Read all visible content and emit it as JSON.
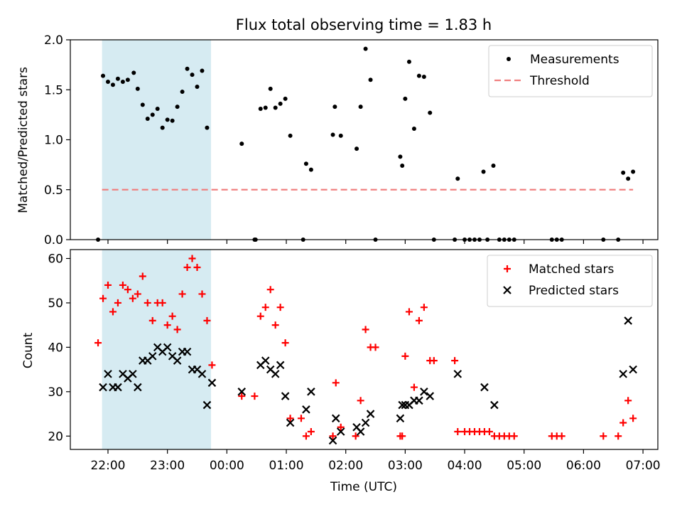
{
  "title": "Flux total observing time = 1.83 h",
  "chart_data": [
    {
      "type": "scatter",
      "ylabel": "Matched/Predicted stars",
      "ylim": [
        0,
        2.0
      ],
      "xlim": [
        "21:22",
        "07:15"
      ],
      "grid": false,
      "legend_placement": "top-right",
      "highlight_band": {
        "start": "21:54",
        "end": "23:44",
        "color": "#add8e6"
      },
      "yticks": [
        "0.0",
        "0.5",
        "1.0",
        "1.5",
        "2.0"
      ],
      "series": [
        {
          "name": "Measurements",
          "marker": "dot",
          "color": "#000000",
          "points": [
            [
              "21:50",
              0.0
            ],
            [
              "21:55",
              1.64
            ],
            [
              "22:00",
              1.58
            ],
            [
              "22:05",
              1.55
            ],
            [
              "22:10",
              1.61
            ],
            [
              "22:15",
              1.58
            ],
            [
              "22:20",
              1.6
            ],
            [
              "22:26",
              1.67
            ],
            [
              "22:30",
              1.51
            ],
            [
              "22:35",
              1.35
            ],
            [
              "22:40",
              1.21
            ],
            [
              "22:45",
              1.25
            ],
            [
              "22:50",
              1.31
            ],
            [
              "22:55",
              1.12
            ],
            [
              "23:00",
              1.2
            ],
            [
              "23:05",
              1.19
            ],
            [
              "23:10",
              1.33
            ],
            [
              "23:15",
              1.48
            ],
            [
              "23:20",
              1.71
            ],
            [
              "23:25",
              1.65
            ],
            [
              "23:30",
              1.53
            ],
            [
              "23:35",
              1.69
            ],
            [
              "23:40",
              1.12
            ],
            [
              "00:15",
              0.96
            ],
            [
              "00:28",
              0.0
            ],
            [
              "00:29",
              0.0
            ],
            [
              "00:34",
              1.31
            ],
            [
              "00:39",
              1.32
            ],
            [
              "00:44",
              1.51
            ],
            [
              "00:49",
              1.32
            ],
            [
              "00:54",
              1.36
            ],
            [
              "00:59",
              1.41
            ],
            [
              "01:04",
              1.04
            ],
            [
              "01:17",
              0.0
            ],
            [
              "01:20",
              0.76
            ],
            [
              "01:25",
              0.7
            ],
            [
              "01:47",
              1.05
            ],
            [
              "01:49",
              1.33
            ],
            [
              "01:55",
              1.04
            ],
            [
              "02:11",
              0.91
            ],
            [
              "02:15",
              1.33
            ],
            [
              "02:20",
              1.91
            ],
            [
              "02:25",
              1.6
            ],
            [
              "02:30",
              0.0
            ],
            [
              "02:55",
              0.83
            ],
            [
              "02:57",
              0.74
            ],
            [
              "03:00",
              1.41
            ],
            [
              "03:04",
              1.78
            ],
            [
              "03:09",
              1.11
            ],
            [
              "03:14",
              1.64
            ],
            [
              "03:19",
              1.63
            ],
            [
              "03:25",
              1.27
            ],
            [
              "03:29",
              0.0
            ],
            [
              "03:50",
              0.0
            ],
            [
              "03:53",
              0.61
            ],
            [
              "04:00",
              0.0
            ],
            [
              "04:05",
              0.0
            ],
            [
              "04:10",
              0.0
            ],
            [
              "04:15",
              0.0
            ],
            [
              "04:19",
              0.68
            ],
            [
              "04:23",
              0.0
            ],
            [
              "04:29",
              0.74
            ],
            [
              "04:35",
              0.0
            ],
            [
              "04:40",
              0.0
            ],
            [
              "04:45",
              0.0
            ],
            [
              "04:50",
              0.0
            ],
            [
              "05:28",
              0.0
            ],
            [
              "05:33",
              0.0
            ],
            [
              "05:38",
              0.0
            ],
            [
              "06:20",
              0.0
            ],
            [
              "06:35",
              0.0
            ],
            [
              "06:40",
              0.67
            ],
            [
              "06:45",
              0.61
            ],
            [
              "06:50",
              0.68
            ]
          ]
        },
        {
          "name": "Threshold",
          "marker": "dashed-line",
          "color": "#f08080",
          "points": [
            [
              "21:54",
              0.5
            ],
            [
              "06:50",
              0.5
            ]
          ]
        }
      ]
    },
    {
      "type": "scatter",
      "xlabel": "Time (UTC)",
      "ylabel": "Count",
      "ylim": [
        17,
        62
      ],
      "xlim": [
        "21:22",
        "07:15"
      ],
      "grid": false,
      "legend_placement": "top-right",
      "highlight_band": {
        "start": "21:54",
        "end": "23:44",
        "color": "#add8e6"
      },
      "yticks": [
        "20",
        "30",
        "40",
        "50",
        "60"
      ],
      "xticks": [
        "22:00",
        "23:00",
        "00:00",
        "01:00",
        "02:00",
        "03:00",
        "04:00",
        "05:00",
        "06:00",
        "07:00"
      ],
      "series": [
        {
          "name": "Matched stars",
          "marker": "plus",
          "color": "#ff0000",
          "points": [
            [
              "21:50",
              41
            ],
            [
              "21:55",
              51
            ],
            [
              "22:00",
              54
            ],
            [
              "22:05",
              48
            ],
            [
              "22:10",
              50
            ],
            [
              "22:15",
              54
            ],
            [
              "22:20",
              53
            ],
            [
              "22:25",
              51
            ],
            [
              "22:30",
              52
            ],
            [
              "22:35",
              56
            ],
            [
              "22:40",
              50
            ],
            [
              "22:45",
              46
            ],
            [
              "22:50",
              50
            ],
            [
              "22:55",
              50
            ],
            [
              "23:00",
              45
            ],
            [
              "23:05",
              47
            ],
            [
              "23:10",
              44
            ],
            [
              "23:15",
              52
            ],
            [
              "23:20",
              58
            ],
            [
              "23:25",
              60
            ],
            [
              "23:30",
              58
            ],
            [
              "23:35",
              52
            ],
            [
              "23:40",
              46
            ],
            [
              "23:45",
              36
            ],
            [
              "00:15",
              29
            ],
            [
              "00:28",
              29
            ],
            [
              "00:34",
              47
            ],
            [
              "00:39",
              49
            ],
            [
              "00:44",
              53
            ],
            [
              "00:49",
              45
            ],
            [
              "00:54",
              49
            ],
            [
              "00:59",
              41
            ],
            [
              "01:04",
              24
            ],
            [
              "01:15",
              24
            ],
            [
              "01:20",
              20
            ],
            [
              "01:25",
              21
            ],
            [
              "01:47",
              20
            ],
            [
              "01:50",
              32
            ],
            [
              "01:55",
              22
            ],
            [
              "02:10",
              20
            ],
            [
              "02:15",
              28
            ],
            [
              "02:20",
              44
            ],
            [
              "02:25",
              40
            ],
            [
              "02:30",
              40
            ],
            [
              "02:55",
              20
            ],
            [
              "02:57",
              20
            ],
            [
              "03:00",
              38
            ],
            [
              "03:04",
              48
            ],
            [
              "03:09",
              31
            ],
            [
              "03:14",
              46
            ],
            [
              "03:19",
              49
            ],
            [
              "03:25",
              37
            ],
            [
              "03:29",
              37
            ],
            [
              "03:50",
              37
            ],
            [
              "03:53",
              21
            ],
            [
              "04:00",
              21
            ],
            [
              "04:05",
              21
            ],
            [
              "04:10",
              21
            ],
            [
              "04:15",
              21
            ],
            [
              "04:20",
              21
            ],
            [
              "04:25",
              21
            ],
            [
              "04:30",
              20
            ],
            [
              "04:35",
              20
            ],
            [
              "04:40",
              20
            ],
            [
              "04:45",
              20
            ],
            [
              "04:50",
              20
            ],
            [
              "05:28",
              20
            ],
            [
              "05:33",
              20
            ],
            [
              "05:38",
              20
            ],
            [
              "06:20",
              20
            ],
            [
              "06:35",
              20
            ],
            [
              "06:40",
              23
            ],
            [
              "06:45",
              28
            ],
            [
              "06:50",
              24
            ]
          ]
        },
        {
          "name": "Predicted stars",
          "marker": "cross",
          "color": "#000000",
          "points": [
            [
              "21:55",
              31
            ],
            [
              "22:00",
              34
            ],
            [
              "22:05",
              31
            ],
            [
              "22:10",
              31
            ],
            [
              "22:15",
              34
            ],
            [
              "22:20",
              33
            ],
            [
              "22:25",
              34
            ],
            [
              "22:30",
              31
            ],
            [
              "22:35",
              37
            ],
            [
              "22:40",
              37
            ],
            [
              "22:45",
              38
            ],
            [
              "22:50",
              40
            ],
            [
              "22:55",
              39
            ],
            [
              "23:00",
              40
            ],
            [
              "23:05",
              38
            ],
            [
              "23:10",
              37
            ],
            [
              "23:15",
              39
            ],
            [
              "23:20",
              39
            ],
            [
              "23:25",
              35
            ],
            [
              "23:30",
              35
            ],
            [
              "23:35",
              34
            ],
            [
              "23:40",
              27
            ],
            [
              "23:45",
              32
            ],
            [
              "00:15",
              30
            ],
            [
              "00:34",
              36
            ],
            [
              "00:39",
              37
            ],
            [
              "00:44",
              35
            ],
            [
              "00:49",
              34
            ],
            [
              "00:54",
              36
            ],
            [
              "00:59",
              29
            ],
            [
              "01:04",
              23
            ],
            [
              "01:20",
              26
            ],
            [
              "01:25",
              30
            ],
            [
              "01:47",
              19
            ],
            [
              "01:50",
              24
            ],
            [
              "01:55",
              21
            ],
            [
              "02:11",
              22
            ],
            [
              "02:15",
              21
            ],
            [
              "02:20",
              23
            ],
            [
              "02:25",
              25
            ],
            [
              "02:55",
              24
            ],
            [
              "02:57",
              27
            ],
            [
              "03:00",
              27
            ],
            [
              "03:04",
              27
            ],
            [
              "03:09",
              28
            ],
            [
              "03:14",
              28
            ],
            [
              "03:19",
              30
            ],
            [
              "03:25",
              29
            ],
            [
              "03:53",
              34
            ],
            [
              "04:20",
              31
            ],
            [
              "04:30",
              27
            ],
            [
              "06:40",
              34
            ],
            [
              "06:45",
              46
            ],
            [
              "06:50",
              35
            ]
          ]
        }
      ]
    }
  ]
}
